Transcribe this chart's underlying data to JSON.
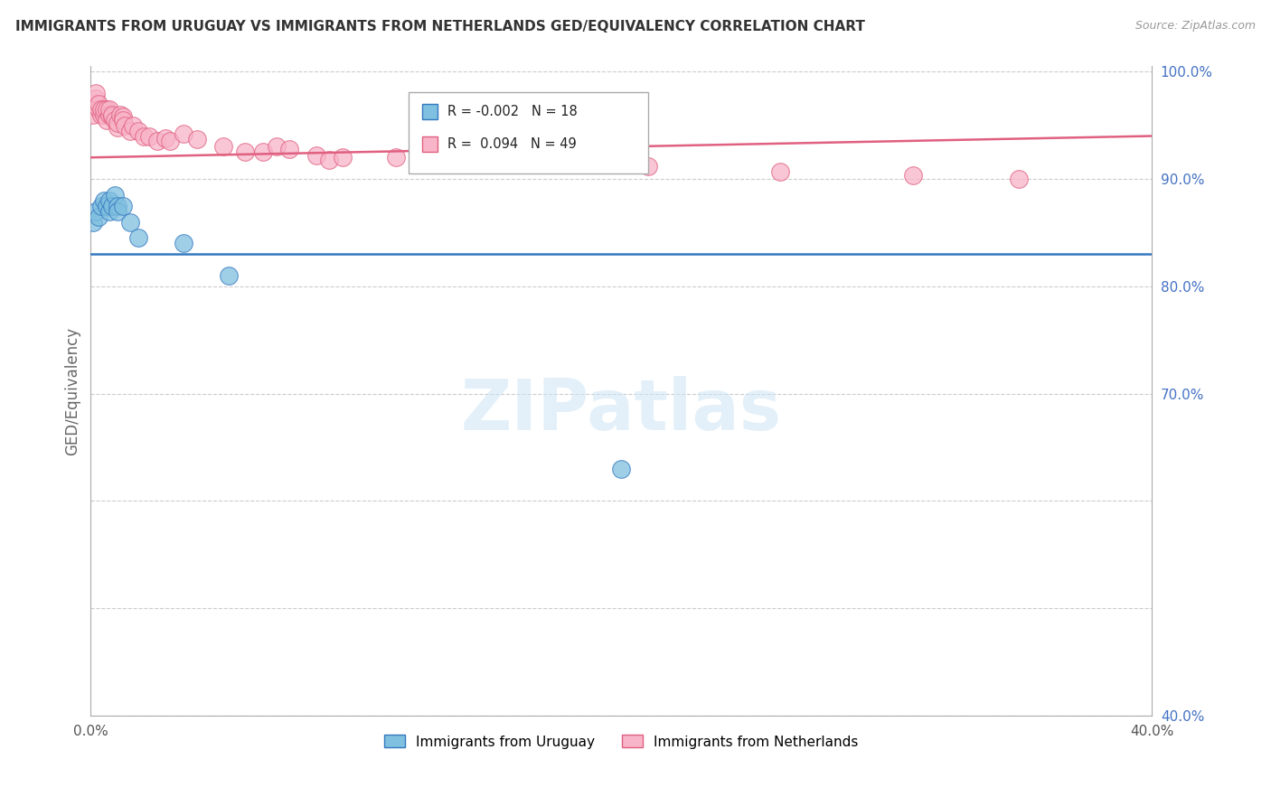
{
  "title": "IMMIGRANTS FROM URUGUAY VS IMMIGRANTS FROM NETHERLANDS GED/EQUIVALENCY CORRELATION CHART",
  "source": "Source: ZipAtlas.com",
  "ylabel": "GED/Equivalency",
  "x_min": 0.0,
  "x_max": 0.4,
  "y_min": 0.4,
  "y_max": 1.005,
  "x_ticks": [
    0.0,
    0.05,
    0.1,
    0.15,
    0.2,
    0.25,
    0.3,
    0.35,
    0.4
  ],
  "x_tick_labels": [
    "0.0%",
    "",
    "",
    "",
    "",
    "",
    "",
    "",
    "40.0%"
  ],
  "y_ticks": [
    0.4,
    0.5,
    0.6,
    0.7,
    0.8,
    0.9,
    1.0
  ],
  "y_tick_labels": [
    "40.0%",
    "",
    "",
    "70.0%",
    "80.0%",
    "90.0%",
    "100.0%"
  ],
  "legend_r_blue": "-0.002",
  "legend_n_blue": "18",
  "legend_r_pink": "0.094",
  "legend_n_pink": "49",
  "legend_label_blue": "Immigrants from Uruguay",
  "legend_label_pink": "Immigrants from Netherlands",
  "color_blue": "#7fbfdf",
  "color_pink": "#f8b4c8",
  "color_trendline_blue": "#3478c0",
  "color_trendline_pink": "#e06080",
  "background_color": "#ffffff",
  "watermark": "ZIPatlas",
  "trendline_blue_y0": 0.83,
  "trendline_blue_y1": 0.83,
  "trendline_pink_y0": 0.92,
  "trendline_pink_y1": 0.94,
  "uruguay_x": [
    0.001,
    0.002,
    0.003,
    0.004,
    0.005,
    0.006,
    0.007,
    0.007,
    0.008,
    0.009,
    0.01,
    0.01,
    0.012,
    0.015,
    0.018,
    0.035,
    0.052,
    0.2
  ],
  "uruguay_y": [
    0.86,
    0.87,
    0.865,
    0.875,
    0.88,
    0.875,
    0.87,
    0.88,
    0.875,
    0.885,
    0.875,
    0.87,
    0.875,
    0.86,
    0.845,
    0.84,
    0.81,
    0.63
  ],
  "netherlands_x": [
    0.001,
    0.001,
    0.002,
    0.002,
    0.003,
    0.003,
    0.004,
    0.004,
    0.005,
    0.005,
    0.006,
    0.006,
    0.007,
    0.007,
    0.008,
    0.008,
    0.009,
    0.01,
    0.01,
    0.011,
    0.012,
    0.012,
    0.013,
    0.015,
    0.016,
    0.018,
    0.02,
    0.022,
    0.025,
    0.028,
    0.03,
    0.035,
    0.04,
    0.05,
    0.058,
    0.065,
    0.07,
    0.075,
    0.085,
    0.09,
    0.095,
    0.115,
    0.16,
    0.17,
    0.18,
    0.21,
    0.26,
    0.31,
    0.35
  ],
  "netherlands_y": [
    0.96,
    0.97,
    0.975,
    0.98,
    0.965,
    0.97,
    0.96,
    0.965,
    0.96,
    0.965,
    0.955,
    0.965,
    0.96,
    0.965,
    0.958,
    0.96,
    0.955,
    0.948,
    0.952,
    0.96,
    0.958,
    0.955,
    0.95,
    0.945,
    0.95,
    0.945,
    0.94,
    0.94,
    0.935,
    0.938,
    0.935,
    0.942,
    0.937,
    0.93,
    0.925,
    0.925,
    0.93,
    0.928,
    0.922,
    0.918,
    0.92,
    0.92,
    0.918,
    0.915,
    0.915,
    0.912,
    0.907,
    0.903,
    0.9
  ]
}
